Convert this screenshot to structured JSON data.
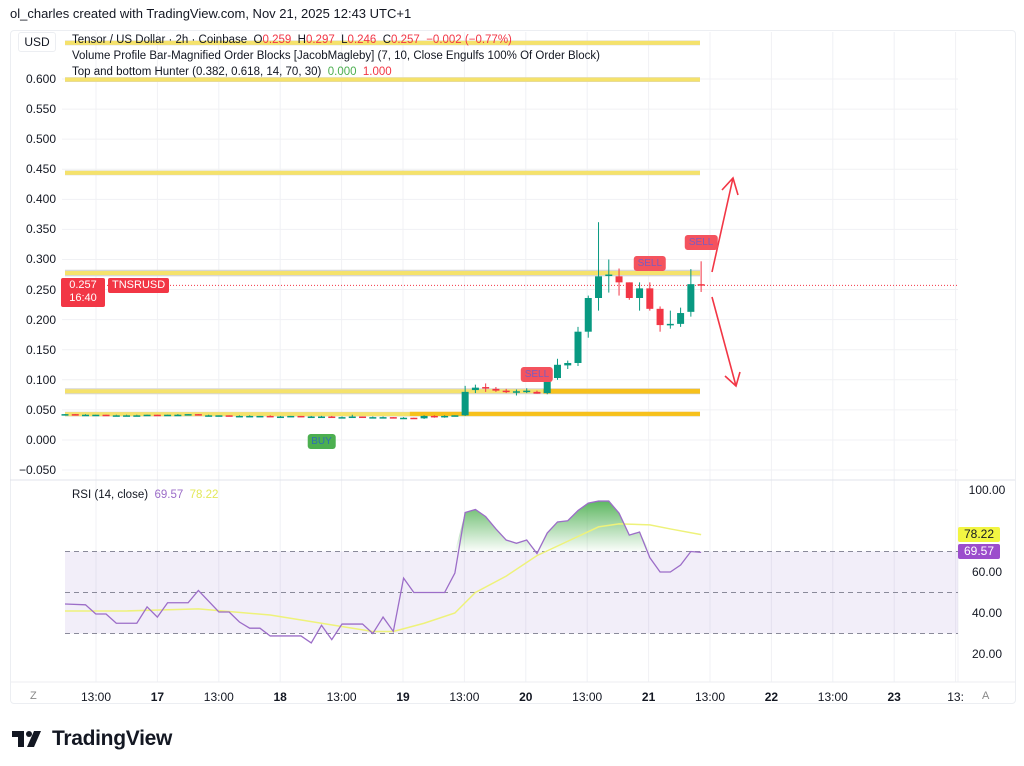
{
  "credit": "ol_charles created with TradingView.com, Nov 21, 2025 12:43 UTC+1",
  "currency": "USD",
  "legend": {
    "symbol_line": "Tensor / US Dollar · 2h · Coinbase",
    "o_label": "O",
    "o": "0.259",
    "h_label": "H",
    "h": "0.297",
    "l_label": "L",
    "l": "0.246",
    "c_label": "C",
    "c": "0.257",
    "change": "−0.002 (−0.77%)",
    "indicator1": "Volume Profile Bar-Magnified Order Blocks [JacobMagleby] (7, 10, Close Engulfs 100% Of Order Block)",
    "indicator2": "Top and bottom Hunter (0.382, 0.618, 14, 70, 30)",
    "indicator2_v1": "0.000",
    "indicator2_v2": "1.000"
  },
  "price_axis": [
    "0.600",
    "0.550",
    "0.500",
    "0.450",
    "0.400",
    "0.350",
    "0.300",
    "0.250",
    "0.200",
    "0.150",
    "0.100",
    "0.050",
    "0.000",
    "−0.050"
  ],
  "current_price": {
    "value": "0.257",
    "countdown": "16:40",
    "symbol": "TNSRUSD"
  },
  "rsi": {
    "legend": "RSI (14, close)",
    "value": "69.57",
    "ma": "78.22",
    "axis": [
      "100.00",
      "60.00",
      "40.00",
      "20.00"
    ]
  },
  "time_axis": [
    "13:00",
    "17",
    "13:00",
    "18",
    "13:00",
    "19",
    "13:00",
    "20",
    "13:00",
    "21",
    "13:00",
    "22",
    "13:00",
    "23",
    "13:"
  ],
  "buttons": {
    "z": "Z",
    "a": "A"
  },
  "signals": [
    {
      "label": "BUY",
      "type": "buy"
    },
    {
      "label": "SELL",
      "type": "sell"
    },
    {
      "label": "SELL",
      "type": "sell"
    },
    {
      "label": "SELL",
      "type": "sell"
    }
  ],
  "brand": "TradingView",
  "colors": {
    "up": "#089981",
    "down": "#f23645",
    "rsi": "#9c6dc8",
    "rsi_ma": "#eef27a",
    "zone": "#f5e26b",
    "zone_grey": "#d6d6d6",
    "order_block": "#f7b500"
  },
  "chart_data": {
    "type": "candlestick",
    "symbol": "TNSRUSD",
    "interval": "2h",
    "exchange": "Coinbase",
    "ylim": [
      -0.065,
      0.665
    ],
    "candles": [
      [
        0.043,
        0.043,
        0.042,
        0.043
      ],
      [
        0.043,
        0.043,
        0.042,
        0.042
      ],
      [
        0.042,
        0.043,
        0.042,
        0.042
      ],
      [
        0.042,
        0.042,
        0.041,
        0.042
      ],
      [
        0.042,
        0.042,
        0.041,
        0.041
      ],
      [
        0.041,
        0.042,
        0.041,
        0.041
      ],
      [
        0.041,
        0.042,
        0.041,
        0.041
      ],
      [
        0.041,
        0.042,
        0.041,
        0.041
      ],
      [
        0.041,
        0.042,
        0.041,
        0.042
      ],
      [
        0.042,
        0.042,
        0.041,
        0.041
      ],
      [
        0.041,
        0.042,
        0.041,
        0.042
      ],
      [
        0.042,
        0.043,
        0.041,
        0.042
      ],
      [
        0.042,
        0.043,
        0.042,
        0.043
      ],
      [
        0.043,
        0.043,
        0.041,
        0.041
      ],
      [
        0.041,
        0.042,
        0.04,
        0.041
      ],
      [
        0.041,
        0.041,
        0.04,
        0.041
      ],
      [
        0.041,
        0.041,
        0.04,
        0.04
      ],
      [
        0.04,
        0.041,
        0.04,
        0.04
      ],
      [
        0.04,
        0.041,
        0.039,
        0.04
      ],
      [
        0.04,
        0.04,
        0.039,
        0.04
      ],
      [
        0.04,
        0.041,
        0.039,
        0.039
      ],
      [
        0.039,
        0.04,
        0.039,
        0.039
      ],
      [
        0.039,
        0.04,
        0.039,
        0.04
      ],
      [
        0.04,
        0.04,
        0.038,
        0.039
      ],
      [
        0.039,
        0.04,
        0.038,
        0.039
      ],
      [
        0.039,
        0.04,
        0.038,
        0.039
      ],
      [
        0.039,
        0.04,
        0.038,
        0.038
      ],
      [
        0.038,
        0.039,
        0.037,
        0.038
      ],
      [
        0.038,
        0.042,
        0.037,
        0.039
      ],
      [
        0.039,
        0.039,
        0.038,
        0.038
      ],
      [
        0.038,
        0.039,
        0.037,
        0.038
      ],
      [
        0.038,
        0.039,
        0.037,
        0.038
      ],
      [
        0.038,
        0.038,
        0.037,
        0.037
      ],
      [
        0.037,
        0.038,
        0.036,
        0.037
      ],
      [
        0.037,
        0.037,
        0.035,
        0.036
      ],
      [
        0.036,
        0.041,
        0.035,
        0.04
      ],
      [
        0.04,
        0.041,
        0.037,
        0.038
      ],
      [
        0.038,
        0.041,
        0.037,
        0.04
      ],
      [
        0.04,
        0.041,
        0.039,
        0.041
      ],
      [
        0.041,
        0.09,
        0.04,
        0.08
      ],
      [
        0.083,
        0.092,
        0.078,
        0.087
      ],
      [
        0.088,
        0.094,
        0.08,
        0.087
      ],
      [
        0.085,
        0.088,
        0.08,
        0.082
      ],
      [
        0.082,
        0.085,
        0.078,
        0.08
      ],
      [
        0.079,
        0.084,
        0.074,
        0.081
      ],
      [
        0.08,
        0.086,
        0.078,
        0.082
      ],
      [
        0.08,
        0.082,
        0.077,
        0.077
      ],
      [
        0.078,
        0.108,
        0.076,
        0.103
      ],
      [
        0.103,
        0.135,
        0.1,
        0.125
      ],
      [
        0.124,
        0.132,
        0.118,
        0.128
      ],
      [
        0.128,
        0.188,
        0.123,
        0.18
      ],
      [
        0.18,
        0.24,
        0.17,
        0.236
      ],
      [
        0.236,
        0.362,
        0.215,
        0.272
      ],
      [
        0.273,
        0.3,
        0.245,
        0.275
      ],
      [
        0.272,
        0.285,
        0.24,
        0.262
      ],
      [
        0.262,
        0.262,
        0.233,
        0.236
      ],
      [
        0.236,
        0.262,
        0.215,
        0.252
      ],
      [
        0.252,
        0.262,
        0.215,
        0.218
      ],
      [
        0.218,
        0.222,
        0.18,
        0.191
      ],
      [
        0.192,
        0.215,
        0.185,
        0.193
      ],
      [
        0.193,
        0.22,
        0.188,
        0.211
      ],
      [
        0.213,
        0.284,
        0.205,
        0.259
      ],
      [
        0.259,
        0.297,
        0.246,
        0.257
      ]
    ],
    "rsi_points": [
      [
        0,
        44.4
      ],
      [
        2,
        44
      ],
      [
        3,
        39.5
      ],
      [
        4,
        39.5
      ],
      [
        5,
        35
      ],
      [
        7,
        35
      ],
      [
        8,
        43
      ],
      [
        9,
        38
      ],
      [
        10,
        45
      ],
      [
        12,
        45
      ],
      [
        13,
        51
      ],
      [
        15,
        40.5
      ],
      [
        16,
        40.5
      ],
      [
        17,
        35.6
      ],
      [
        18,
        32.6
      ],
      [
        19,
        32.6
      ],
      [
        20,
        28.8
      ],
      [
        23,
        28.8
      ],
      [
        24,
        25.4
      ],
      [
        25,
        34
      ],
      [
        26,
        27
      ],
      [
        27,
        34.6
      ],
      [
        29,
        34.6
      ],
      [
        30,
        30
      ],
      [
        31,
        38
      ],
      [
        32,
        31
      ],
      [
        33,
        57
      ],
      [
        34,
        50
      ],
      [
        37,
        50
      ],
      [
        38,
        59.5
      ],
      [
        39,
        89
      ],
      [
        40,
        90.5
      ],
      [
        41,
        87
      ],
      [
        42,
        81
      ],
      [
        43,
        75.6
      ],
      [
        44,
        74
      ],
      [
        45,
        75.6
      ],
      [
        46,
        69
      ],
      [
        47,
        79
      ],
      [
        48,
        84.4
      ],
      [
        49,
        85
      ],
      [
        50,
        90
      ],
      [
        51,
        93.6
      ],
      [
        52,
        94.6
      ],
      [
        53,
        94.6
      ],
      [
        54,
        88.7
      ],
      [
        55,
        78
      ],
      [
        56,
        79.5
      ],
      [
        57,
        67
      ],
      [
        58,
        60
      ],
      [
        59,
        60
      ],
      [
        60,
        63.4
      ],
      [
        61,
        70
      ],
      [
        62,
        69.57
      ]
    ],
    "rsi_ma_points": [
      [
        0,
        41
      ],
      [
        6,
        41
      ],
      [
        13,
        42
      ],
      [
        20,
        39
      ],
      [
        25,
        35
      ],
      [
        30,
        31
      ],
      [
        32,
        31
      ],
      [
        35,
        35
      ],
      [
        38,
        40
      ],
      [
        40,
        50
      ],
      [
        43,
        58
      ],
      [
        46,
        68
      ],
      [
        49,
        75
      ],
      [
        52,
        82
      ],
      [
        54,
        83.5
      ],
      [
        57,
        83
      ],
      [
        59,
        81
      ],
      [
        62,
        78.22
      ]
    ],
    "rsi_levels": [
      70,
      50,
      30
    ],
    "rsi_ylim": [
      10,
      100
    ],
    "zones": [
      [
        0.656,
        0.664
      ],
      [
        0.595,
        0.603
      ],
      [
        0.44,
        0.448
      ],
      [
        0.272,
        0.283
      ],
      [
        0.076,
        0.086
      ],
      [
        0.039,
        0.047
      ]
    ],
    "order_blocks": [
      [
        47,
        0.077,
        0.085
      ],
      [
        34,
        0.04,
        0.047
      ]
    ],
    "signal_positions": [
      [
        25,
        -0.003
      ],
      [
        46,
        0.108
      ],
      [
        57,
        0.293
      ],
      [
        62,
        0.327
      ]
    ],
    "arrows": [
      "up",
      "down"
    ]
  }
}
